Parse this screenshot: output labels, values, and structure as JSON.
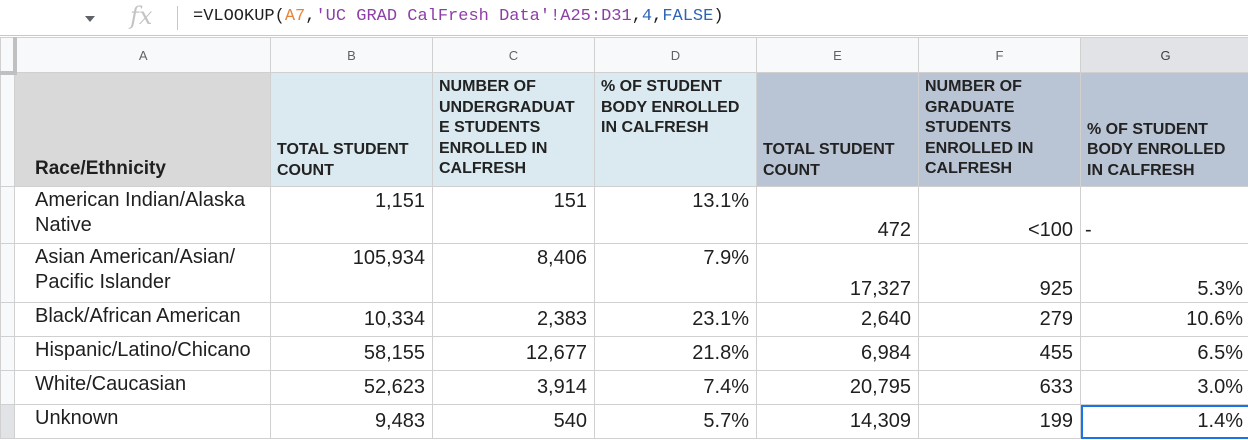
{
  "formula": {
    "prefix": "=VLOOKUP(",
    "ref1": "A7",
    "sep1": ",",
    "ref2": "'UC GRAD CalFresh Data'!A25:D31",
    "sep2": ",",
    "arg3": "4",
    "sep3": ",",
    "arg4": "FALSE",
    "suffix": ")"
  },
  "fx_label": "fx",
  "columns": [
    "A",
    "B",
    "C",
    "D",
    "E",
    "F",
    "G"
  ],
  "header": {
    "race": "Race/Ethnicity",
    "b": "TOTAL STUDENT COUNT",
    "c": "NUMBER OF UNDERGRADUAT E STUDENTS ENROLLED IN CALFRESH",
    "d": "% OF STUDENT BODY ENROLLED IN CALFRESH",
    "e": "TOTAL STUDENT COUNT",
    "f": "NUMBER OF GRADUATE STUDENTS ENROLLED IN CALFRESH",
    "g": "% OF STUDENT BODY ENROLLED IN CALFRESH"
  },
  "rows": [
    {
      "race": "American Indian/Alaska Native",
      "b": "1,151",
      "c": "151",
      "d": "13.1%",
      "e": "472",
      "f": "<100",
      "g": "-"
    },
    {
      "race": "Asian American/Asian/ Pacific Islander",
      "b": "105,934",
      "c": "8,406",
      "d": "7.9%",
      "e": "17,327",
      "f": "925",
      "g": "5.3%"
    },
    {
      "race": "Black/African American",
      "b": "10,334",
      "c": "2,383",
      "d": "23.1%",
      "e": "2,640",
      "f": "279",
      "g": "10.6%"
    },
    {
      "race": "Hispanic/Latino/Chicano",
      "b": "58,155",
      "c": "12,677",
      "d": "21.8%",
      "e": "6,984",
      "f": "455",
      "g": "6.5%"
    },
    {
      "race": "White/Caucasian",
      "b": "52,623",
      "c": "3,914",
      "d": "7.4%",
      "e": "20,795",
      "f": "633",
      "g": "3.0%"
    },
    {
      "race": "Unknown",
      "b": "9,483",
      "c": "540",
      "d": "5.7%",
      "e": "14,309",
      "f": "199",
      "g": "1.4%"
    }
  ],
  "colors": {
    "light_header": "#daeaf0",
    "dark_header": "#b9c4d4",
    "race_header": "#d9d9d9",
    "selection": "#1a73e8"
  },
  "selected_cell": "G7"
}
